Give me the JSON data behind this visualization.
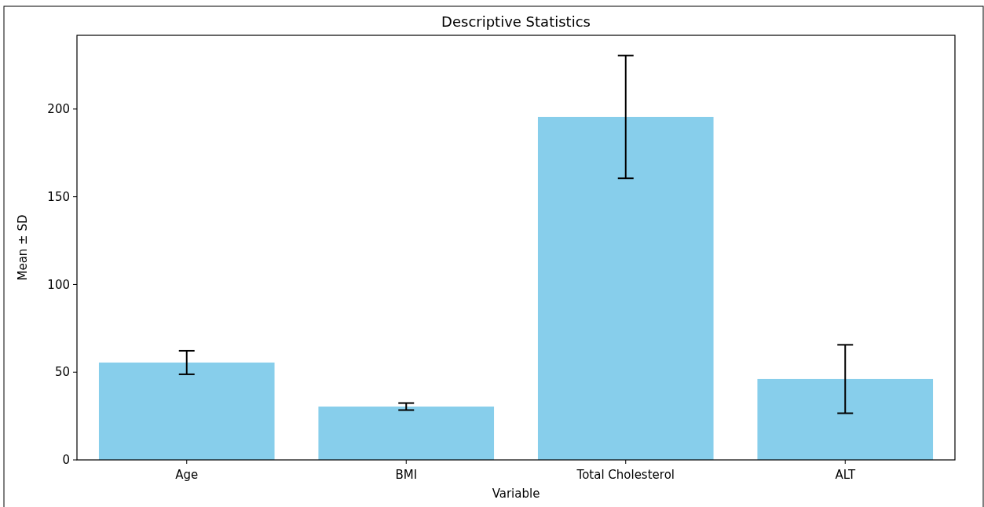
{
  "chart_data": {
    "type": "bar",
    "title": "Descriptive Statistics",
    "xlabel": "Variable",
    "ylabel": "Mean ± SD",
    "categories": [
      "Age",
      "BMI",
      "Total Cholesterol",
      "ALT"
    ],
    "values": [
      55.5,
      30.4,
      195.5,
      46.1
    ],
    "errors": [
      6.7,
      2,
      35,
      19.5
    ],
    "color": "#87ceeb",
    "ylim": [
      0,
      242
    ],
    "yticks": [
      0,
      50,
      100,
      150,
      200
    ],
    "grid": false
  }
}
